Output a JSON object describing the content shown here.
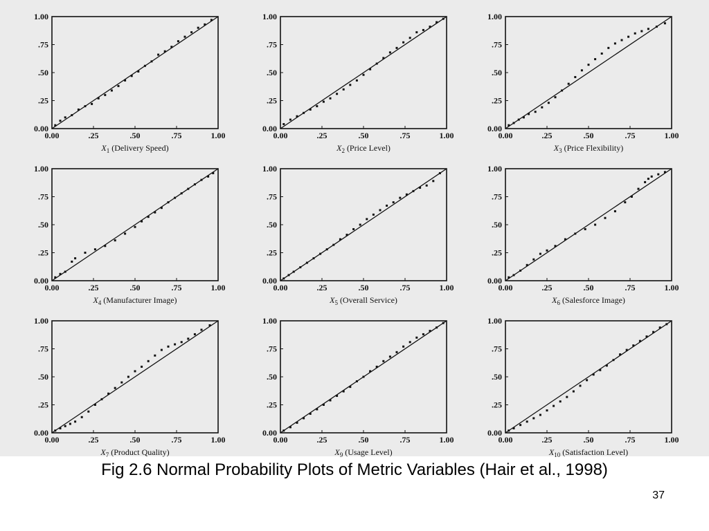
{
  "slide": {
    "caption": "Fig 2.6  Normal Probability Plots of Metric Variables (Hair et al., 1998)",
    "page_number": "37"
  },
  "chart_data": [
    {
      "type": "scatter",
      "xlabel": "X1 (Delivery Speed)",
      "var": "X",
      "sub": "1",
      "name": "(Delivery Speed)",
      "xlim": [
        0,
        1
      ],
      "ylim": [
        0,
        1
      ],
      "xticks": [
        "0.00",
        ".25",
        ".50",
        ".75",
        "1.00"
      ],
      "yticks": [
        "0.00",
        ".25",
        ".50",
        ".75",
        "1.00"
      ],
      "line": [
        [
          0,
          0
        ],
        [
          1,
          1
        ]
      ],
      "points": [
        [
          0.02,
          0.03
        ],
        [
          0.05,
          0.07
        ],
        [
          0.08,
          0.1
        ],
        [
          0.12,
          0.12
        ],
        [
          0.16,
          0.17
        ],
        [
          0.2,
          0.2
        ],
        [
          0.24,
          0.22
        ],
        [
          0.28,
          0.27
        ],
        [
          0.32,
          0.3
        ],
        [
          0.36,
          0.34
        ],
        [
          0.4,
          0.38
        ],
        [
          0.44,
          0.43
        ],
        [
          0.48,
          0.47
        ],
        [
          0.52,
          0.51
        ],
        [
          0.56,
          0.56
        ],
        [
          0.6,
          0.6
        ],
        [
          0.64,
          0.66
        ],
        [
          0.68,
          0.69
        ],
        [
          0.72,
          0.73
        ],
        [
          0.76,
          0.78
        ],
        [
          0.8,
          0.82
        ],
        [
          0.84,
          0.86
        ],
        [
          0.88,
          0.9
        ],
        [
          0.92,
          0.93
        ],
        [
          0.96,
          0.97
        ]
      ]
    },
    {
      "type": "scatter",
      "xlabel": "X2 (Price Level)",
      "var": "X",
      "sub": "2",
      "name": "(Price Level)",
      "xlim": [
        0,
        1
      ],
      "ylim": [
        0,
        1
      ],
      "xticks": [
        "0.00",
        ".25",
        ".50",
        ".75",
        "1.00"
      ],
      "yticks": [
        "0.00",
        ".25",
        ".50",
        ".75",
        "1.00"
      ],
      "line": [
        [
          0,
          0
        ],
        [
          1,
          1
        ]
      ],
      "points": [
        [
          0.02,
          0.04
        ],
        [
          0.06,
          0.08
        ],
        [
          0.1,
          0.11
        ],
        [
          0.14,
          0.14
        ],
        [
          0.18,
          0.17
        ],
        [
          0.22,
          0.2
        ],
        [
          0.26,
          0.24
        ],
        [
          0.3,
          0.27
        ],
        [
          0.34,
          0.31
        ],
        [
          0.38,
          0.35
        ],
        [
          0.42,
          0.39
        ],
        [
          0.46,
          0.43
        ],
        [
          0.5,
          0.48
        ],
        [
          0.54,
          0.53
        ],
        [
          0.58,
          0.58
        ],
        [
          0.62,
          0.63
        ],
        [
          0.66,
          0.68
        ],
        [
          0.7,
          0.72
        ],
        [
          0.74,
          0.77
        ],
        [
          0.78,
          0.81
        ],
        [
          0.82,
          0.86
        ],
        [
          0.86,
          0.88
        ],
        [
          0.9,
          0.91
        ],
        [
          0.94,
          0.95
        ],
        [
          0.98,
          0.98
        ]
      ]
    },
    {
      "type": "scatter",
      "xlabel": "X3 (Price Flexibility)",
      "var": "X",
      "sub": "3",
      "name": "(Price Flexibility)",
      "xlim": [
        0,
        1
      ],
      "ylim": [
        0,
        1
      ],
      "xticks": [
        "0.00",
        ".25",
        ".50",
        ".75",
        "1.00"
      ],
      "yticks": [
        "0.00",
        ".25",
        ".50",
        ".75",
        "1.00"
      ],
      "line": [
        [
          0,
          0
        ],
        [
          1,
          1
        ]
      ],
      "points": [
        [
          0.02,
          0.03
        ],
        [
          0.05,
          0.05
        ],
        [
          0.08,
          0.08
        ],
        [
          0.11,
          0.1
        ],
        [
          0.14,
          0.13
        ],
        [
          0.18,
          0.15
        ],
        [
          0.22,
          0.19
        ],
        [
          0.26,
          0.23
        ],
        [
          0.3,
          0.28
        ],
        [
          0.34,
          0.34
        ],
        [
          0.38,
          0.4
        ],
        [
          0.42,
          0.46
        ],
        [
          0.46,
          0.52
        ],
        [
          0.5,
          0.57
        ],
        [
          0.54,
          0.62
        ],
        [
          0.58,
          0.67
        ],
        [
          0.62,
          0.72
        ],
        [
          0.66,
          0.76
        ],
        [
          0.7,
          0.79
        ],
        [
          0.74,
          0.82
        ],
        [
          0.78,
          0.85
        ],
        [
          0.82,
          0.87
        ],
        [
          0.86,
          0.89
        ],
        [
          0.91,
          0.91
        ],
        [
          0.96,
          0.94
        ]
      ]
    },
    {
      "type": "scatter",
      "xlabel": "X4 (Manufacturer Image)",
      "var": "X",
      "sub": "4",
      "name": "(Manufacturer Image)",
      "xlim": [
        0,
        1
      ],
      "ylim": [
        0,
        1
      ],
      "xticks": [
        "0.00",
        ".25",
        ".50",
        ".75",
        "1.00"
      ],
      "yticks": [
        "0.00",
        ".25",
        ".50",
        ".75",
        "1.00"
      ],
      "line": [
        [
          0,
          0
        ],
        [
          1,
          1
        ]
      ],
      "points": [
        [
          0.02,
          0.03
        ],
        [
          0.05,
          0.06
        ],
        [
          0.08,
          0.08
        ],
        [
          0.12,
          0.17
        ],
        [
          0.14,
          0.2
        ],
        [
          0.2,
          0.25
        ],
        [
          0.26,
          0.28
        ],
        [
          0.32,
          0.31
        ],
        [
          0.38,
          0.36
        ],
        [
          0.44,
          0.42
        ],
        [
          0.5,
          0.48
        ],
        [
          0.54,
          0.53
        ],
        [
          0.58,
          0.57
        ],
        [
          0.62,
          0.61
        ],
        [
          0.66,
          0.65
        ],
        [
          0.7,
          0.7
        ],
        [
          0.74,
          0.74
        ],
        [
          0.78,
          0.78
        ],
        [
          0.82,
          0.82
        ],
        [
          0.86,
          0.86
        ],
        [
          0.9,
          0.9
        ],
        [
          0.94,
          0.93
        ],
        [
          0.97,
          0.96
        ]
      ]
    },
    {
      "type": "scatter",
      "xlabel": "X5 (Overall Service)",
      "var": "X",
      "sub": "5",
      "name": "(Overall Service)",
      "xlim": [
        0,
        1
      ],
      "ylim": [
        0,
        1
      ],
      "xticks": [
        "0.00",
        ".25",
        ".50",
        ".75",
        "1.00"
      ],
      "yticks": [
        "0.00",
        ".25",
        ".50",
        ".75",
        "1.00"
      ],
      "line": [
        [
          0,
          0
        ],
        [
          1,
          1
        ]
      ],
      "points": [
        [
          0.02,
          0.02
        ],
        [
          0.05,
          0.05
        ],
        [
          0.08,
          0.08
        ],
        [
          0.12,
          0.12
        ],
        [
          0.16,
          0.16
        ],
        [
          0.2,
          0.2
        ],
        [
          0.24,
          0.24
        ],
        [
          0.28,
          0.28
        ],
        [
          0.32,
          0.32
        ],
        [
          0.36,
          0.37
        ],
        [
          0.4,
          0.41
        ],
        [
          0.44,
          0.46
        ],
        [
          0.48,
          0.5
        ],
        [
          0.52,
          0.55
        ],
        [
          0.56,
          0.59
        ],
        [
          0.6,
          0.63
        ],
        [
          0.64,
          0.67
        ],
        [
          0.68,
          0.7
        ],
        [
          0.72,
          0.74
        ],
        [
          0.76,
          0.77
        ],
        [
          0.8,
          0.8
        ],
        [
          0.84,
          0.83
        ],
        [
          0.88,
          0.85
        ],
        [
          0.92,
          0.89
        ],
        [
          0.96,
          0.96
        ]
      ]
    },
    {
      "type": "scatter",
      "xlabel": "X6 (Salesforce Image)",
      "var": "X",
      "sub": "6",
      "name": "(Salesforce Image)",
      "xlim": [
        0,
        1
      ],
      "ylim": [
        0,
        1
      ],
      "xticks": [
        "0.00",
        ".25",
        ".50",
        ".75",
        "1.00"
      ],
      "yticks": [
        "0.00",
        ".25",
        ".50",
        ".75",
        "1.00"
      ],
      "line": [
        [
          0,
          0
        ],
        [
          1,
          1
        ]
      ],
      "points": [
        [
          0.02,
          0.03
        ],
        [
          0.05,
          0.05
        ],
        [
          0.09,
          0.09
        ],
        [
          0.13,
          0.14
        ],
        [
          0.17,
          0.19
        ],
        [
          0.21,
          0.24
        ],
        [
          0.25,
          0.27
        ],
        [
          0.3,
          0.31
        ],
        [
          0.36,
          0.37
        ],
        [
          0.42,
          0.42
        ],
        [
          0.48,
          0.46
        ],
        [
          0.54,
          0.5
        ],
        [
          0.6,
          0.56
        ],
        [
          0.66,
          0.62
        ],
        [
          0.72,
          0.7
        ],
        [
          0.76,
          0.75
        ],
        [
          0.8,
          0.82
        ],
        [
          0.84,
          0.88
        ],
        [
          0.86,
          0.91
        ],
        [
          0.88,
          0.93
        ],
        [
          0.92,
          0.95
        ],
        [
          0.96,
          0.97
        ]
      ]
    },
    {
      "type": "scatter",
      "xlabel": "X7 (Product Quality)",
      "var": "X",
      "sub": "7",
      "name": "(Product Quality)",
      "xlim": [
        0,
        1
      ],
      "ylim": [
        0,
        1
      ],
      "xticks": [
        "0.00",
        ".25",
        ".50",
        ".75",
        "1.00"
      ],
      "yticks": [
        "0.00",
        ".25",
        ".50",
        ".75",
        "1.00"
      ],
      "line": [
        [
          0,
          0
        ],
        [
          1,
          1
        ]
      ],
      "points": [
        [
          0.02,
          0.02
        ],
        [
          0.05,
          0.04
        ],
        [
          0.08,
          0.06
        ],
        [
          0.11,
          0.08
        ],
        [
          0.14,
          0.1
        ],
        [
          0.18,
          0.14
        ],
        [
          0.22,
          0.19
        ],
        [
          0.26,
          0.25
        ],
        [
          0.3,
          0.3
        ],
        [
          0.34,
          0.35
        ],
        [
          0.38,
          0.4
        ],
        [
          0.42,
          0.45
        ],
        [
          0.46,
          0.5
        ],
        [
          0.5,
          0.55
        ],
        [
          0.54,
          0.59
        ],
        [
          0.58,
          0.64
        ],
        [
          0.62,
          0.69
        ],
        [
          0.66,
          0.74
        ],
        [
          0.7,
          0.77
        ],
        [
          0.74,
          0.79
        ],
        [
          0.78,
          0.81
        ],
        [
          0.82,
          0.84
        ],
        [
          0.86,
          0.88
        ],
        [
          0.9,
          0.92
        ],
        [
          0.95,
          0.96
        ]
      ]
    },
    {
      "type": "scatter",
      "xlabel": "X9 (Usage Level)",
      "var": "X",
      "sub": "9",
      "name": "(Usage Level)",
      "xlim": [
        0,
        1
      ],
      "ylim": [
        0,
        1
      ],
      "xticks": [
        "0.00",
        ".25",
        ".50",
        ".75",
        "1.00"
      ],
      "yticks": [
        "0.00",
        ".25",
        ".50",
        ".75",
        "1.00"
      ],
      "line": [
        [
          0,
          0
        ],
        [
          1,
          1
        ]
      ],
      "points": [
        [
          0.02,
          0.02
        ],
        [
          0.06,
          0.05
        ],
        [
          0.1,
          0.09
        ],
        [
          0.14,
          0.13
        ],
        [
          0.18,
          0.17
        ],
        [
          0.22,
          0.21
        ],
        [
          0.26,
          0.25
        ],
        [
          0.3,
          0.29
        ],
        [
          0.34,
          0.33
        ],
        [
          0.38,
          0.37
        ],
        [
          0.42,
          0.41
        ],
        [
          0.46,
          0.46
        ],
        [
          0.5,
          0.5
        ],
        [
          0.54,
          0.55
        ],
        [
          0.58,
          0.59
        ],
        [
          0.62,
          0.64
        ],
        [
          0.66,
          0.68
        ],
        [
          0.7,
          0.72
        ],
        [
          0.74,
          0.77
        ],
        [
          0.78,
          0.81
        ],
        [
          0.82,
          0.85
        ],
        [
          0.86,
          0.88
        ],
        [
          0.9,
          0.91
        ],
        [
          0.94,
          0.94
        ],
        [
          0.98,
          0.98
        ]
      ]
    },
    {
      "type": "scatter",
      "xlabel": "X10 (Satisfaction Level)",
      "var": "X",
      "sub": "10",
      "name": "(Satisfaction Level)",
      "xlim": [
        0,
        1
      ],
      "ylim": [
        0,
        1
      ],
      "xticks": [
        "0.00",
        ".25",
        ".50",
        ".75",
        "1.00"
      ],
      "yticks": [
        "0.00",
        ".25",
        ".50",
        ".75",
        "1.00"
      ],
      "line": [
        [
          0,
          0
        ],
        [
          1,
          1
        ]
      ],
      "points": [
        [
          0.02,
          0.02
        ],
        [
          0.05,
          0.04
        ],
        [
          0.09,
          0.07
        ],
        [
          0.13,
          0.1
        ],
        [
          0.17,
          0.13
        ],
        [
          0.21,
          0.16
        ],
        [
          0.25,
          0.2
        ],
        [
          0.29,
          0.24
        ],
        [
          0.33,
          0.28
        ],
        [
          0.37,
          0.32
        ],
        [
          0.41,
          0.37
        ],
        [
          0.45,
          0.42
        ],
        [
          0.49,
          0.47
        ],
        [
          0.53,
          0.52
        ],
        [
          0.57,
          0.56
        ],
        [
          0.61,
          0.6
        ],
        [
          0.65,
          0.65
        ],
        [
          0.69,
          0.7
        ],
        [
          0.73,
          0.74
        ],
        [
          0.77,
          0.78
        ],
        [
          0.81,
          0.82
        ],
        [
          0.85,
          0.86
        ],
        [
          0.89,
          0.9
        ],
        [
          0.93,
          0.94
        ],
        [
          0.97,
          0.97
        ]
      ]
    }
  ]
}
